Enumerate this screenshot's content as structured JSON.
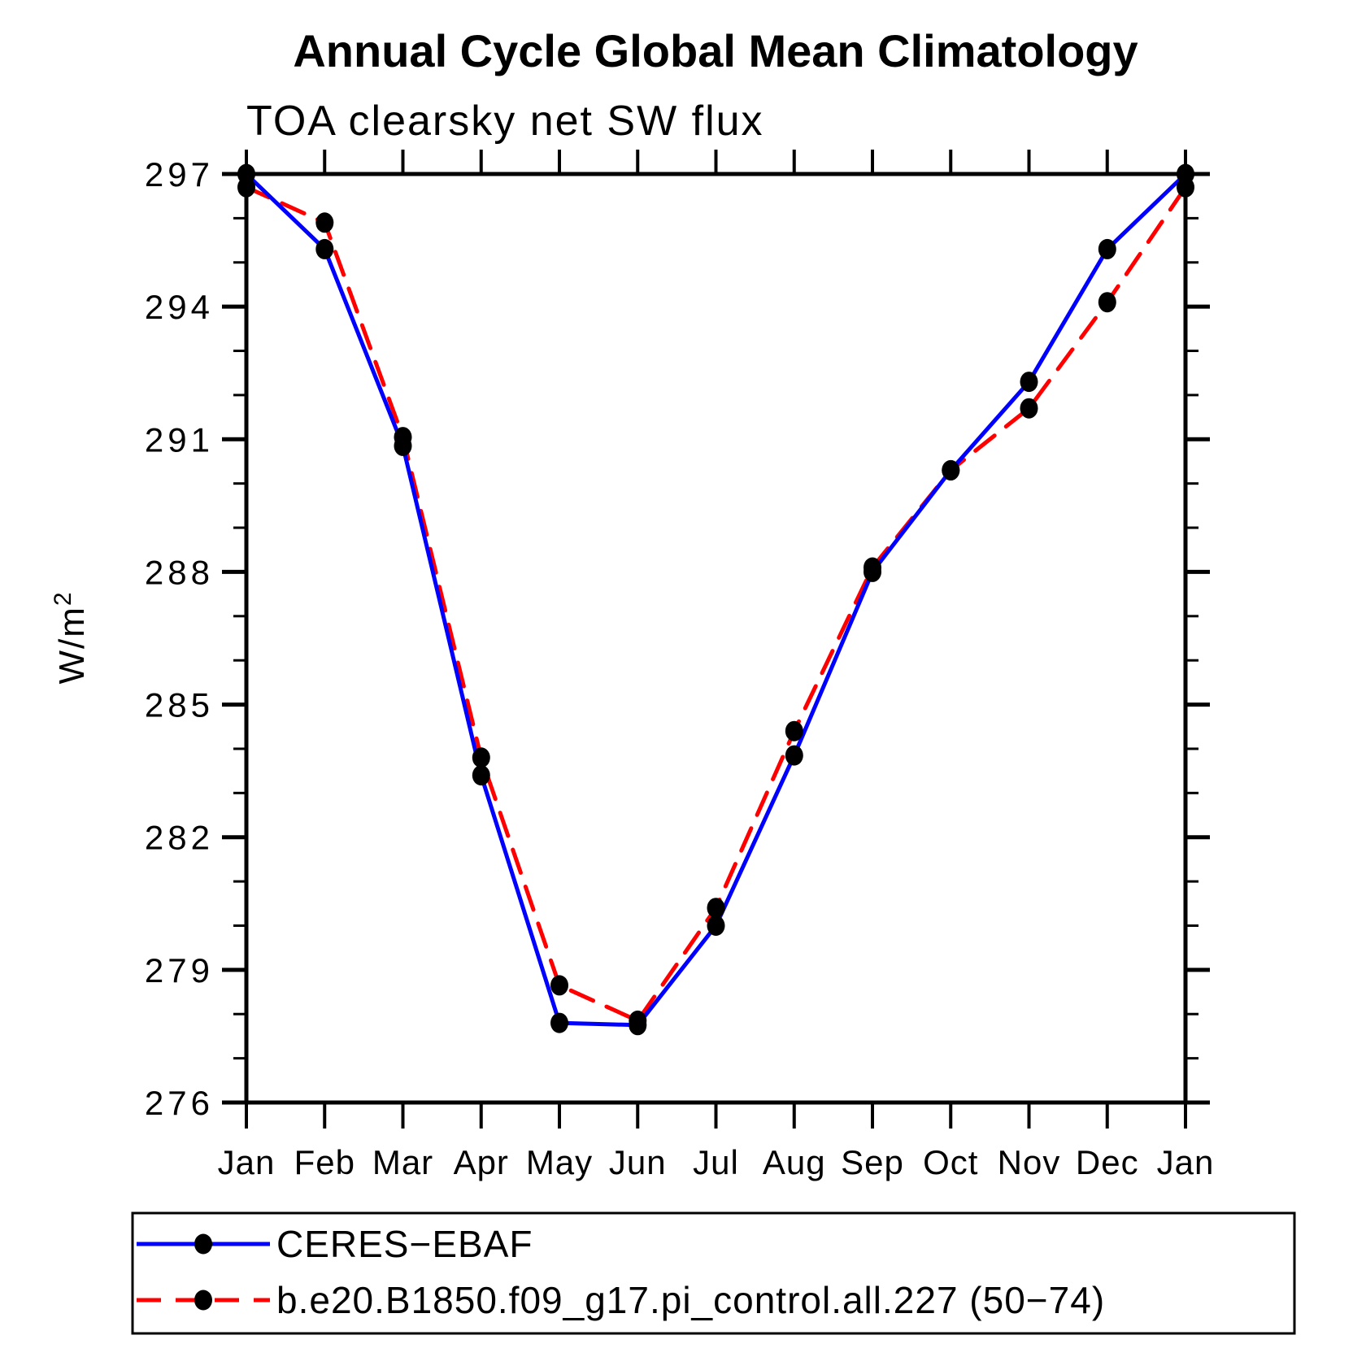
{
  "chart_data": {
    "type": "line",
    "title": "Annual Cycle Global Mean Climatology",
    "subtitle": "TOA clearsky net SW flux",
    "ylabel_base": "W/m",
    "ylabel_sup": "2",
    "x_categories": [
      "Jan",
      "Feb",
      "Mar",
      "Apr",
      "May",
      "Jun",
      "Jul",
      "Aug",
      "Sep",
      "Oct",
      "Nov",
      "Dec",
      "Jan"
    ],
    "ylim": [
      276,
      297
    ],
    "y_ticks_major": [
      276,
      279,
      282,
      285,
      288,
      291,
      294,
      297
    ],
    "y_minor_step": 1,
    "grid": false,
    "legend_position": "bottom",
    "axis_color": "#000000",
    "marker_shape": "filled-circle",
    "series": [
      {
        "name": "CERES−EBAF",
        "color": "#0000ff",
        "style": "solid",
        "marker_color": "#000000",
        "values": [
          297.0,
          295.3,
          290.85,
          283.4,
          277.8,
          277.75,
          280.0,
          283.85,
          288.0,
          290.3,
          292.3,
          295.3,
          297.0
        ]
      },
      {
        "name": "b.e20.B1850.f09_g17.pi_control.all.227 (50−74)",
        "color": "#ff0000",
        "style": "dashed",
        "marker_color": "#000000",
        "values": [
          296.7,
          295.9,
          291.05,
          283.8,
          278.65,
          277.85,
          280.4,
          284.4,
          288.1,
          290.3,
          291.7,
          294.1,
          296.7
        ]
      }
    ]
  }
}
